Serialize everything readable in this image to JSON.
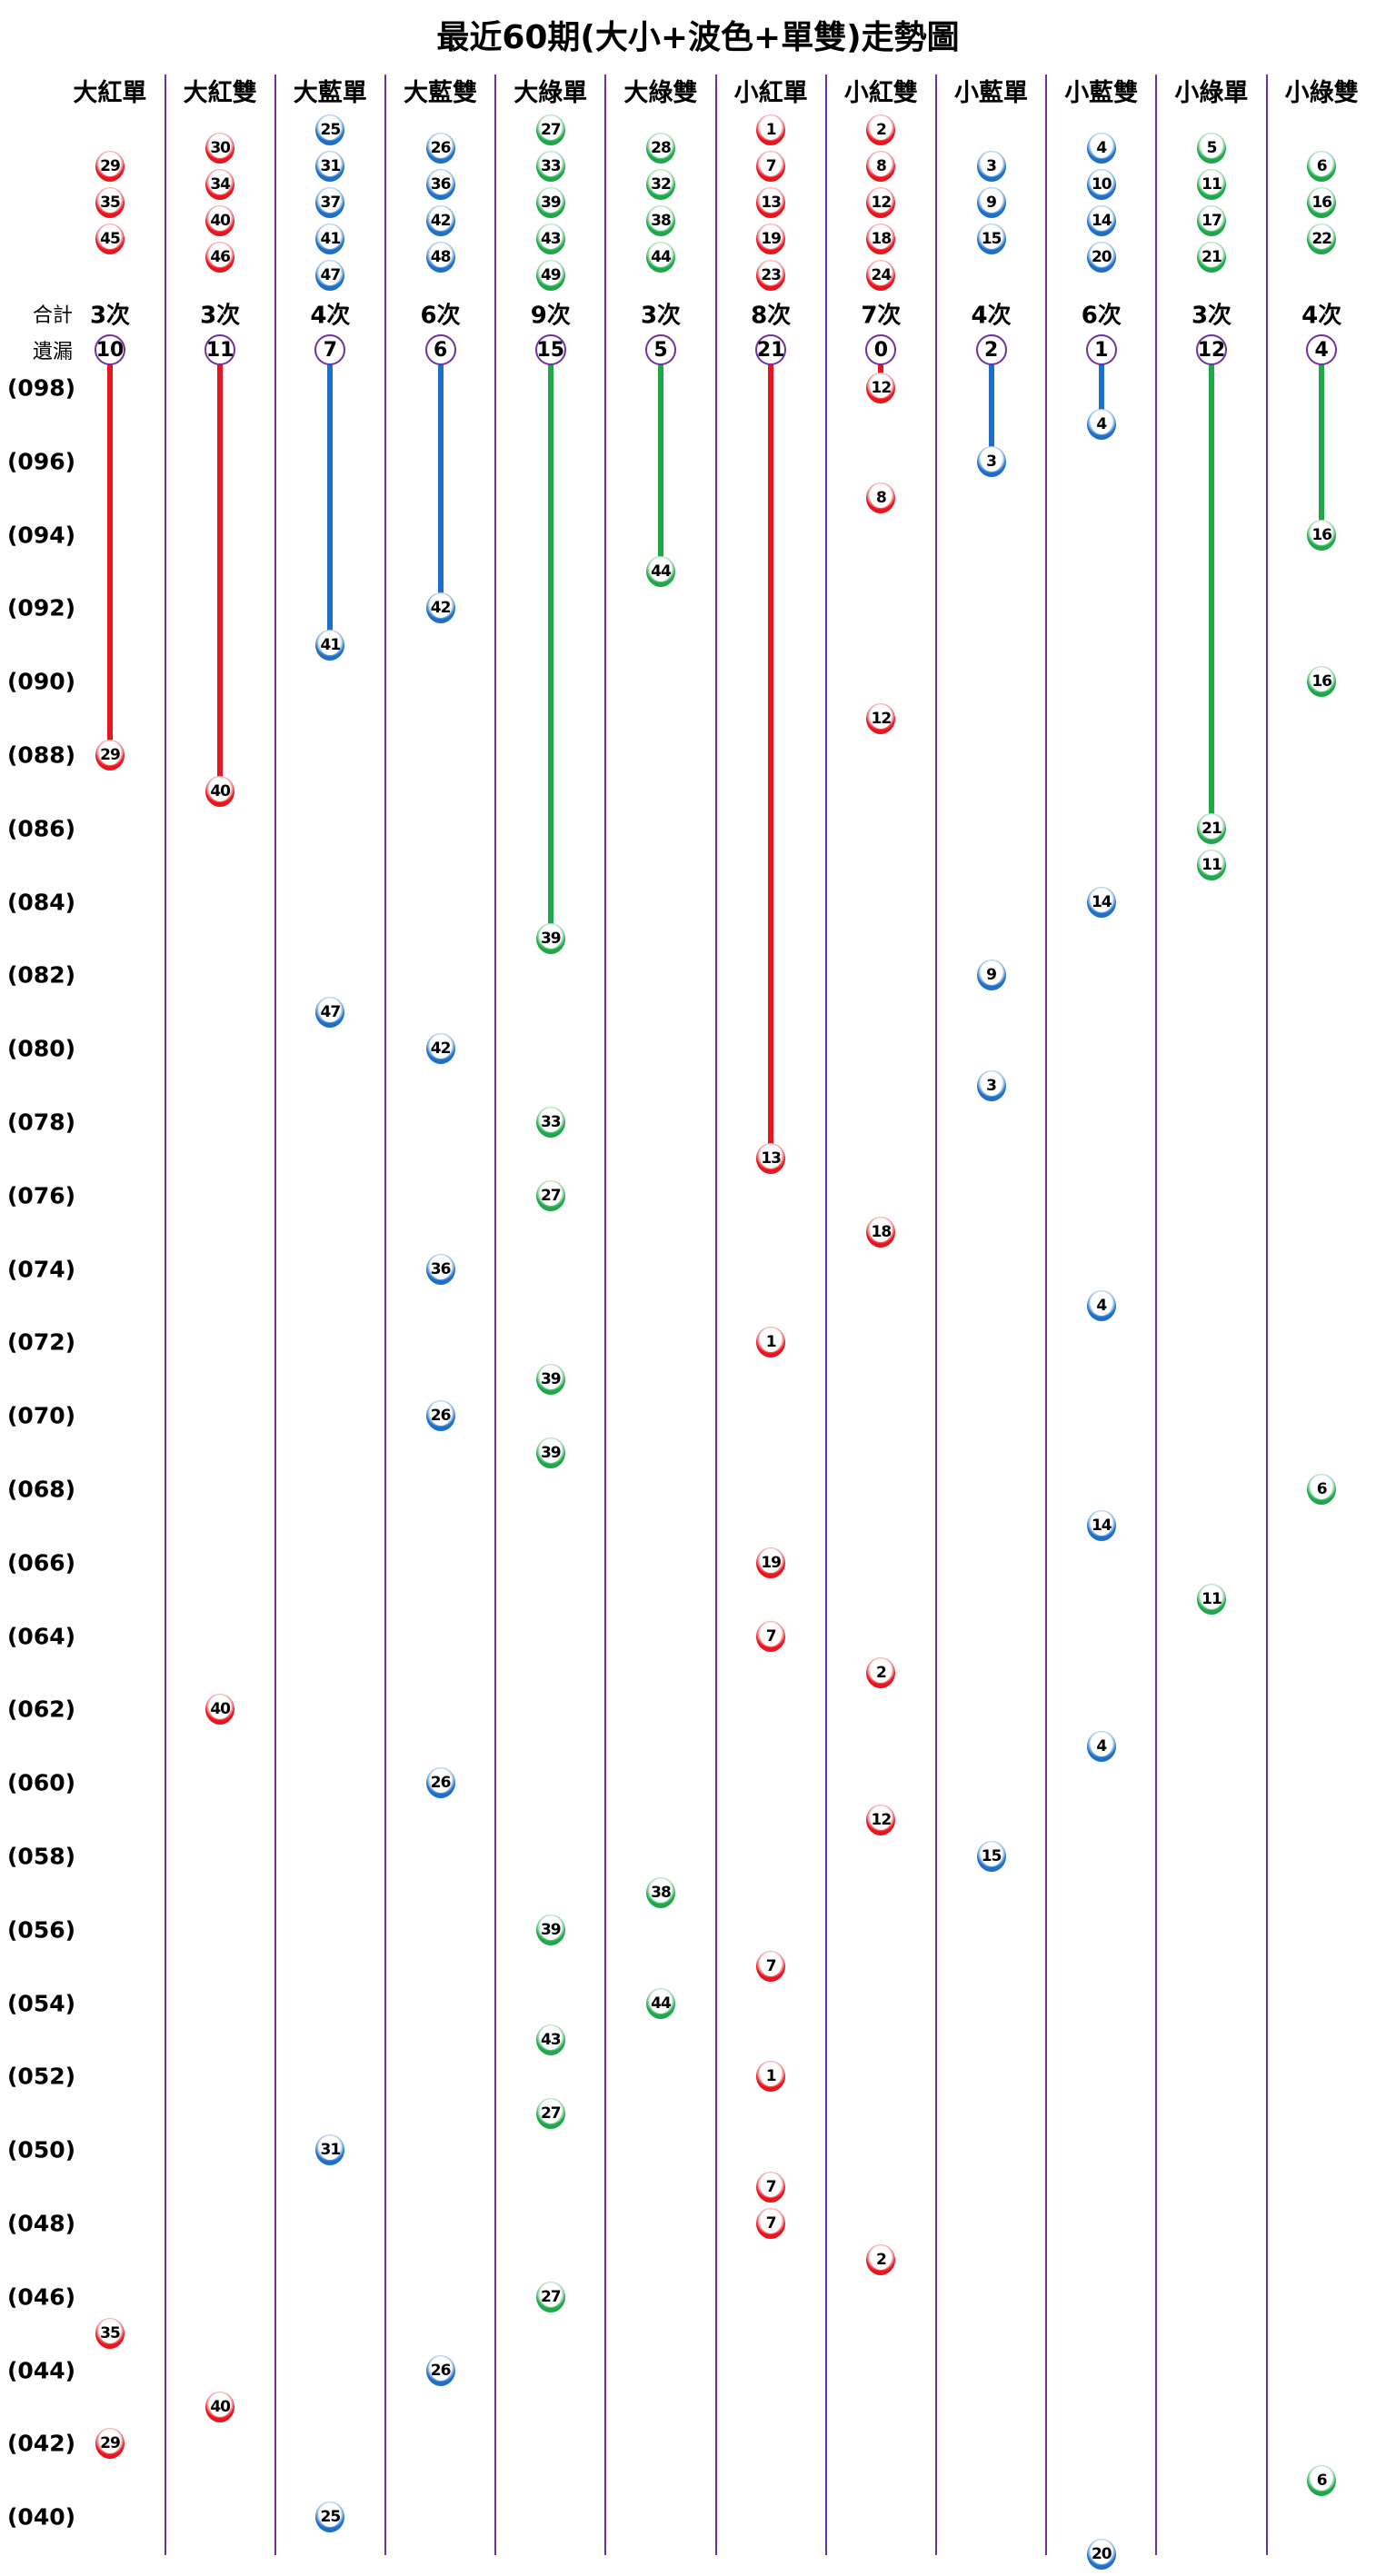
{
  "chart_data": {
    "type": "table",
    "title": "最近60期(大小+波色+單雙)走勢圖",
    "total_label": "合計",
    "miss_label": "遺漏",
    "period_labels": [
      "(098)",
      "(096)",
      "(094)",
      "(092)",
      "(090)",
      "(088)",
      "(086)",
      "(084)",
      "(082)",
      "(080)",
      "(078)",
      "(076)",
      "(074)",
      "(072)",
      "(070)",
      "(068)",
      "(066)",
      "(064)",
      "(062)",
      "(060)",
      "(058)",
      "(056)",
      "(054)",
      "(052)",
      "(050)",
      "(048)",
      "(046)",
      "(044)",
      "(042)",
      "(040)"
    ],
    "period_range": [
      39,
      98
    ],
    "colors": {
      "red": "#e8141e",
      "blue": "#1e6fc8",
      "green": "#1fa84a",
      "divider": "#7030a0"
    },
    "columns": [
      {
        "label": "大紅單",
        "color": "red",
        "pool": [
          29,
          35,
          45
        ],
        "total": "3次",
        "miss": "10",
        "hits": [
          [
            88,
            29
          ],
          [
            45,
            35
          ],
          [
            42,
            29
          ]
        ]
      },
      {
        "label": "大紅雙",
        "color": "red",
        "pool": [
          30,
          34,
          40,
          46
        ],
        "total": "3次",
        "miss": "11",
        "hits": [
          [
            87,
            40
          ],
          [
            62,
            40
          ],
          [
            43,
            40
          ]
        ]
      },
      {
        "label": "大藍單",
        "color": "blue",
        "pool": [
          25,
          31,
          37,
          41,
          47
        ],
        "total": "4次",
        "miss": "7",
        "hits": [
          [
            91,
            41
          ],
          [
            81,
            47
          ],
          [
            50,
            31
          ],
          [
            40,
            25
          ]
        ]
      },
      {
        "label": "大藍雙",
        "color": "blue",
        "pool": [
          26,
          36,
          42,
          48
        ],
        "total": "6次",
        "miss": "6",
        "hits": [
          [
            92,
            42
          ],
          [
            80,
            42
          ],
          [
            74,
            36
          ],
          [
            70,
            26
          ],
          [
            60,
            26
          ],
          [
            44,
            26
          ]
        ]
      },
      {
        "label": "大綠單",
        "color": "green",
        "pool": [
          27,
          33,
          39,
          43,
          49
        ],
        "total": "9次",
        "miss": "15",
        "hits": [
          [
            83,
            39
          ],
          [
            78,
            33
          ],
          [
            76,
            27
          ],
          [
            71,
            39
          ],
          [
            69,
            39
          ],
          [
            56,
            39
          ],
          [
            53,
            43
          ],
          [
            51,
            27
          ],
          [
            46,
            27
          ]
        ]
      },
      {
        "label": "大綠雙",
        "color": "green",
        "pool": [
          28,
          32,
          38,
          44
        ],
        "total": "3次",
        "miss": "5",
        "hits": [
          [
            93,
            44
          ],
          [
            57,
            38
          ],
          [
            54,
            44
          ]
        ]
      },
      {
        "label": "小紅單",
        "color": "red",
        "pool": [
          1,
          7,
          13,
          19,
          23
        ],
        "total": "8次",
        "miss": "21",
        "hits": [
          [
            77,
            13
          ],
          [
            72,
            1
          ],
          [
            66,
            19
          ],
          [
            64,
            7
          ],
          [
            55,
            7
          ],
          [
            52,
            1
          ],
          [
            49,
            7
          ],
          [
            48,
            7
          ]
        ]
      },
      {
        "label": "小紅雙",
        "color": "red",
        "pool": [
          2,
          8,
          12,
          18,
          24
        ],
        "total": "7次",
        "miss": "0",
        "hits": [
          [
            98,
            12
          ],
          [
            95,
            8
          ],
          [
            89,
            12
          ],
          [
            75,
            18
          ],
          [
            63,
            2
          ],
          [
            59,
            12
          ],
          [
            47,
            2
          ]
        ]
      },
      {
        "label": "小藍單",
        "color": "blue",
        "pool": [
          3,
          9,
          15
        ],
        "total": "4次",
        "miss": "2",
        "hits": [
          [
            96,
            3
          ],
          [
            82,
            9
          ],
          [
            79,
            3
          ],
          [
            58,
            15
          ]
        ]
      },
      {
        "label": "小藍雙",
        "color": "blue",
        "pool": [
          4,
          10,
          14,
          20
        ],
        "total": "6次",
        "miss": "1",
        "hits": [
          [
            97,
            4
          ],
          [
            84,
            14
          ],
          [
            73,
            4
          ],
          [
            67,
            14
          ],
          [
            61,
            4
          ],
          [
            39,
            20
          ]
        ]
      },
      {
        "label": "小綠單",
        "color": "green",
        "pool": [
          5,
          11,
          17,
          21
        ],
        "total": "3次",
        "miss": "12",
        "hits": [
          [
            86,
            21
          ],
          [
            85,
            11
          ],
          [
            65,
            11
          ]
        ]
      },
      {
        "label": "小綠雙",
        "color": "green",
        "pool": [
          6,
          16,
          22
        ],
        "total": "4次",
        "miss": "4",
        "hits": [
          [
            94,
            16
          ],
          [
            90,
            16
          ],
          [
            68,
            6
          ],
          [
            41,
            6
          ]
        ]
      }
    ]
  }
}
